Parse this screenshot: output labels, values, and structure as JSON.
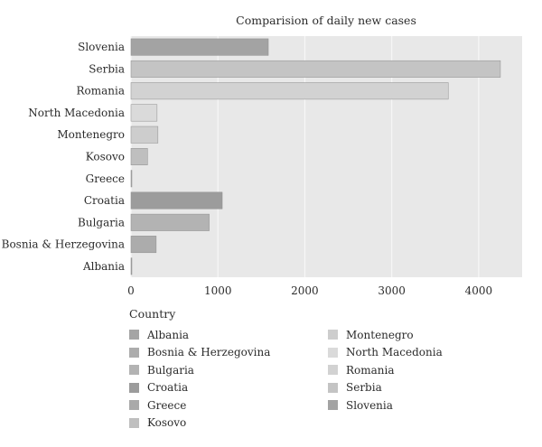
{
  "chart_data": {
    "type": "bar",
    "orientation": "horizontal",
    "title": "Comparision of daily new cases",
    "categories": [
      "Slovenia",
      "Serbia",
      "Romania",
      "North Macedonia",
      "Montenegro",
      "Kosovo",
      "Greece",
      "Croatia",
      "Bulgaria",
      "Bosnia & Herzegovina",
      "Albania"
    ],
    "values": [
      1580,
      4250,
      3650,
      300,
      310,
      190,
      5,
      1050,
      900,
      290,
      5
    ],
    "colors": [
      "#a3a3a3",
      "#c4c4c4",
      "#d2d2d2",
      "#dadada",
      "#cdcdcd",
      "#bfbfbf",
      "#a9a9a9",
      "#9c9c9c",
      "#b3b3b3",
      "#acacac",
      "#a5a5a5"
    ],
    "xlim": [
      0,
      4500
    ],
    "xticks": [
      "0",
      "1000",
      "2000",
      "3000",
      "4000"
    ],
    "xtick_values": [
      0,
      1000,
      2000,
      3000,
      4000
    ],
    "grid": true,
    "background": "#e8e8e8",
    "legend": {
      "title": "Country",
      "placement": "bottom",
      "items": [
        {
          "label": "Albania",
          "color": "#a5a5a5"
        },
        {
          "label": "Bosnia & Herzegovina",
          "color": "#acacac"
        },
        {
          "label": "Bulgaria",
          "color": "#b3b3b3"
        },
        {
          "label": "Croatia",
          "color": "#9c9c9c"
        },
        {
          "label": "Greece",
          "color": "#a9a9a9"
        },
        {
          "label": "Kosovo",
          "color": "#bfbfbf"
        },
        {
          "label": "Montenegro",
          "color": "#cdcdcd"
        },
        {
          "label": "North Macedonia",
          "color": "#dadada"
        },
        {
          "label": "Romania",
          "color": "#d2d2d2"
        },
        {
          "label": "Serbia",
          "color": "#c4c4c4"
        },
        {
          "label": "Slovenia",
          "color": "#a3a3a3"
        }
      ]
    }
  }
}
